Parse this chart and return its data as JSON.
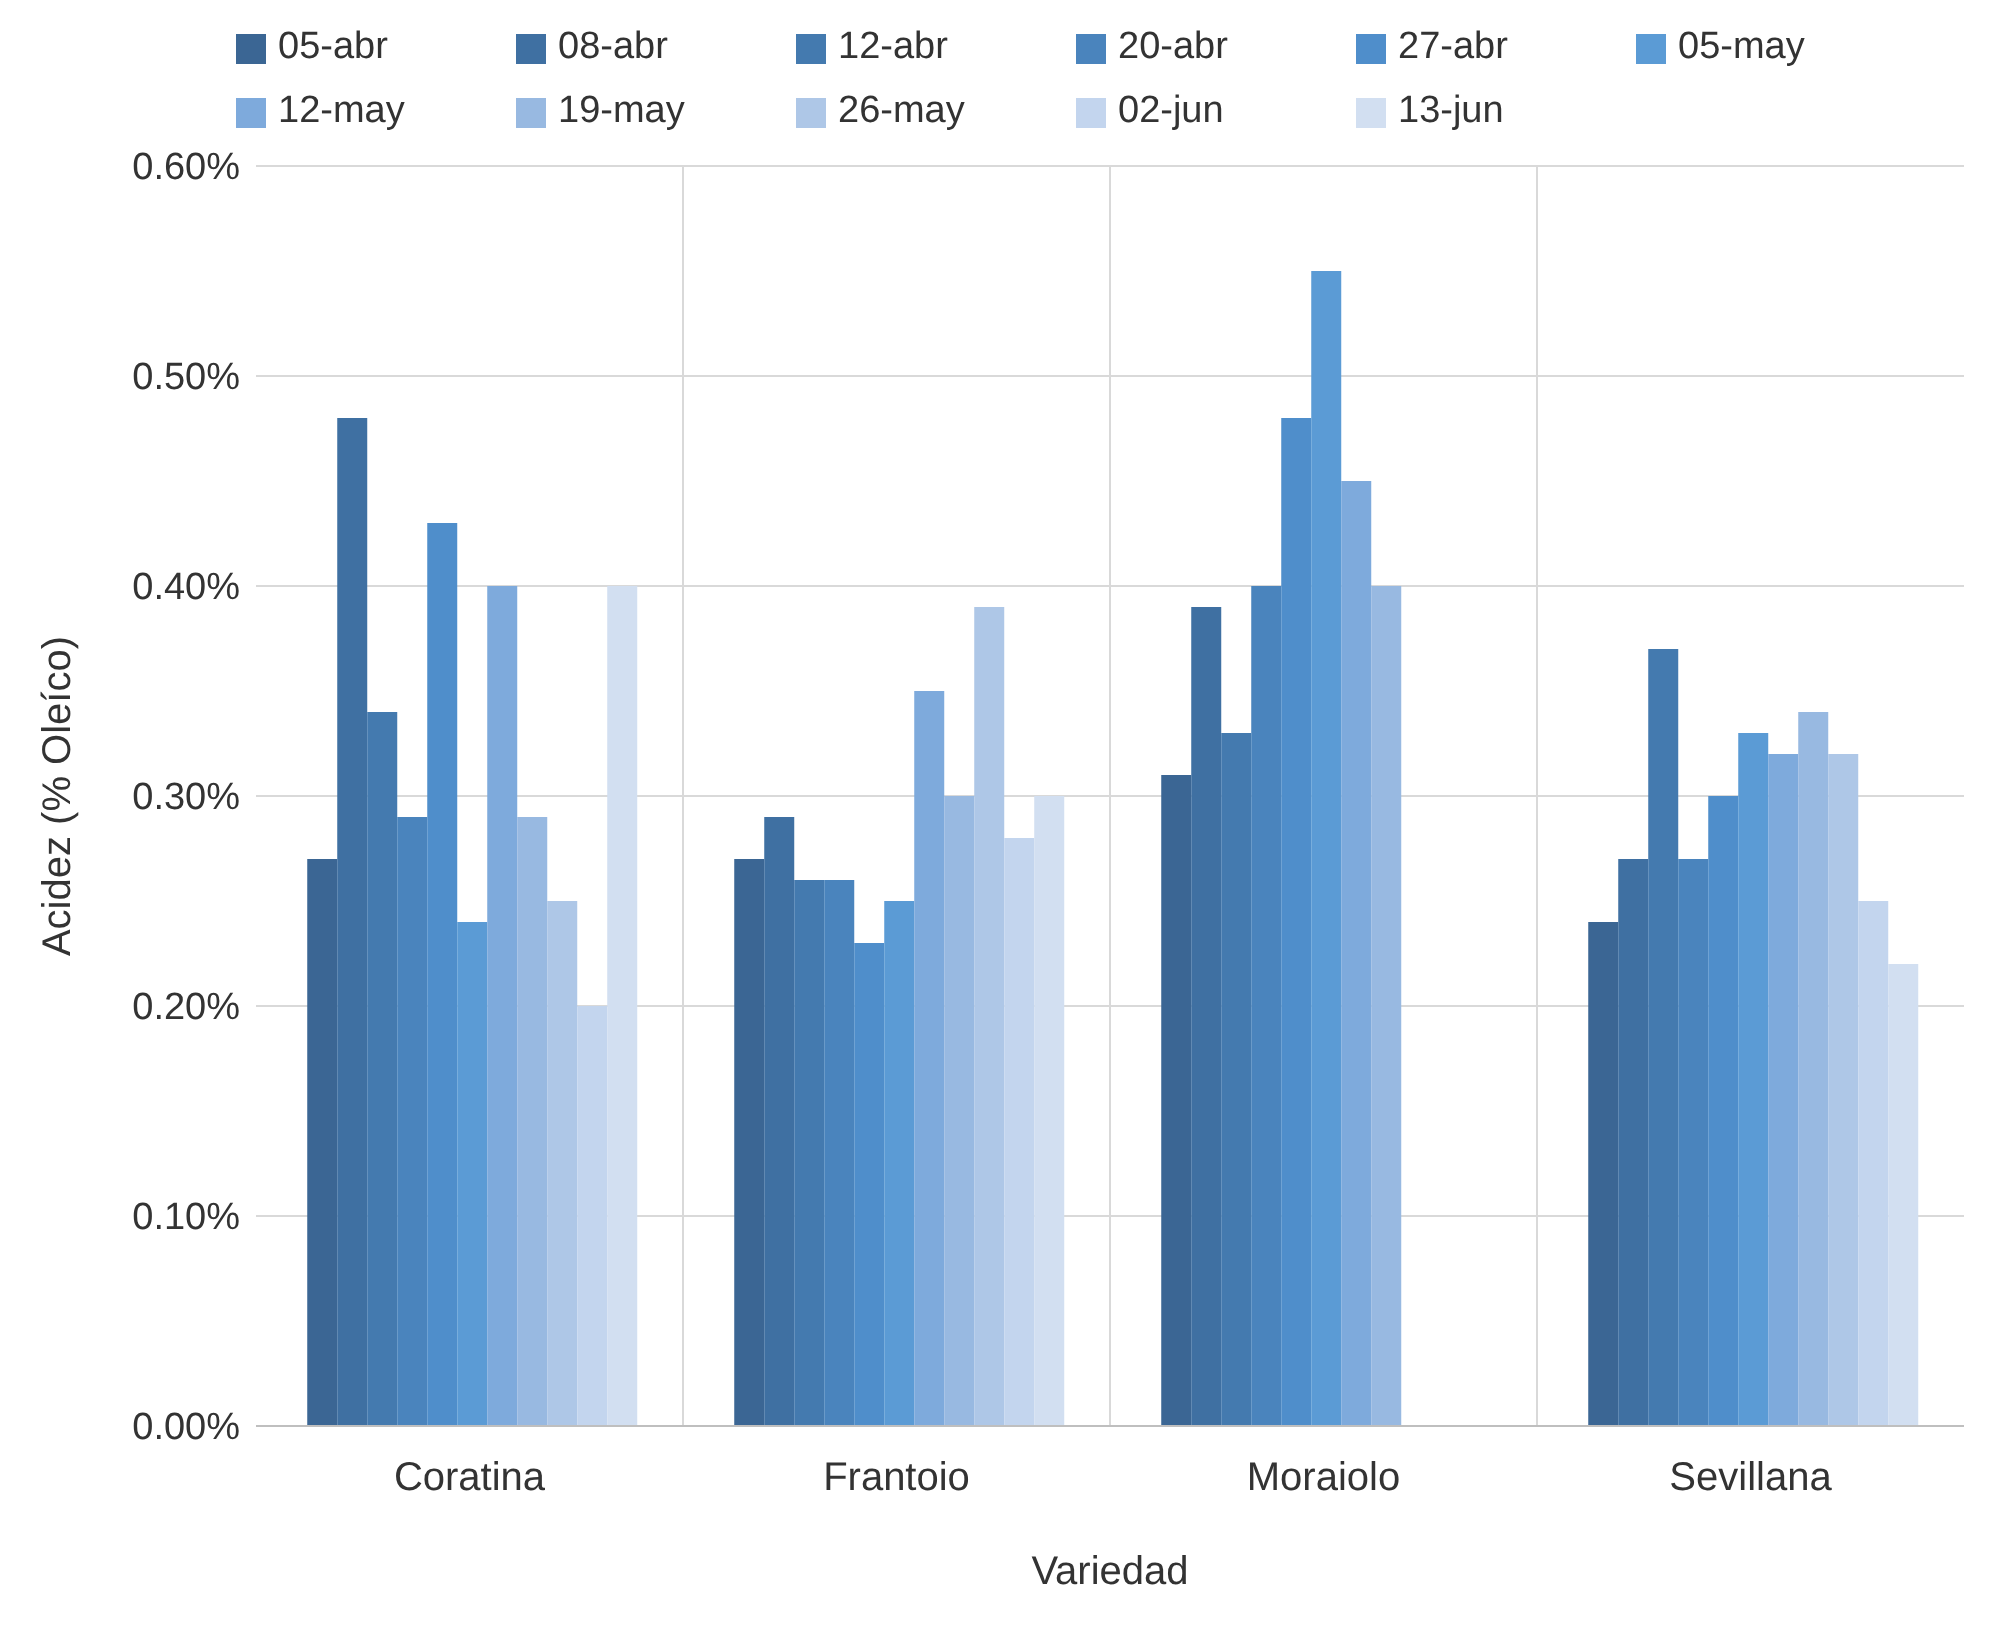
{
  "chart_data": {
    "type": "bar",
    "xlabel": "Variedad",
    "ylabel": "Acidez (% Oleíco)",
    "categories": [
      "Coratina",
      "Frantoio",
      "Moraiolo",
      "Sevillana"
    ],
    "series": [
      {
        "name": "05-abr",
        "color": "#3b6694",
        "values": [
          0.27,
          0.27,
          0.31,
          0.24
        ]
      },
      {
        "name": "08-abr",
        "color": "#3f70a2",
        "values": [
          0.48,
          0.29,
          0.39,
          0.27
        ]
      },
      {
        "name": "12-abr",
        "color": "#447aaf",
        "values": [
          0.34,
          0.26,
          0.33,
          0.37
        ]
      },
      {
        "name": "20-abr",
        "color": "#4a84bd",
        "values": [
          0.29,
          0.26,
          0.4,
          0.27
        ]
      },
      {
        "name": "27-abr",
        "color": "#4f8ecb",
        "values": [
          0.43,
          0.23,
          0.48,
          0.3
        ]
      },
      {
        "name": "05-may",
        "color": "#5b9bd5",
        "values": [
          0.24,
          0.25,
          0.55,
          0.33
        ]
      },
      {
        "name": "12-may",
        "color": "#7eaadc",
        "values": [
          0.4,
          0.35,
          0.45,
          0.32
        ]
      },
      {
        "name": "19-may",
        "color": "#98b9e1",
        "values": [
          0.29,
          0.3,
          0.4,
          0.34
        ]
      },
      {
        "name": "26-may",
        "color": "#aec7e7",
        "values": [
          0.25,
          0.39,
          null,
          0.32
        ]
      },
      {
        "name": "02-jun",
        "color": "#c3d5ee",
        "values": [
          0.2,
          0.28,
          null,
          0.25
        ]
      },
      {
        "name": "13-jun",
        "color": "#d2dff1",
        "values": [
          0.4,
          0.3,
          null,
          0.22
        ]
      }
    ],
    "ylim": [
      0,
      0.6
    ],
    "yticks": [
      {
        "value": 0,
        "label": "0.00%"
      },
      {
        "value": 0.1,
        "label": "0.10%"
      },
      {
        "value": 0.2,
        "label": "0.20%"
      },
      {
        "value": 0.3,
        "label": "0.30%"
      },
      {
        "value": 0.4,
        "label": "0.40%"
      },
      {
        "value": 0.5,
        "label": "0.50%"
      },
      {
        "value": 0.6,
        "label": "0.60%"
      }
    ],
    "grid": true,
    "legend": "top"
  }
}
